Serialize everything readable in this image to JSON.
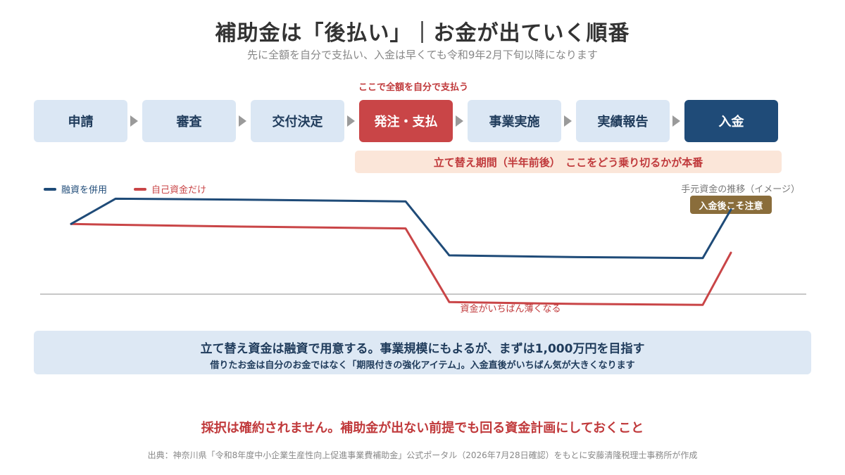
{
  "title": "補助金は「後払い」｜お金が出ていく順番",
  "subtitle": "先に全額を自分で支払い、入金は早くても令和9年2月下旬以降になります",
  "callout": "ここで全額を自分で支払う",
  "steps": [
    "申請",
    "審査",
    "交付決定",
    "発注・支払",
    "事業実施",
    "実績報告",
    "入金"
  ],
  "period_note": "立て替え期間（半年前後）　ここをどう乗り切るかが本番",
  "legend": [
    {
      "label": "融資を併用",
      "color": "#1f4b78"
    },
    {
      "label": "自己資金だけ",
      "color": "#c94547"
    }
  ],
  "chart_caption": "手元資金の推移（イメージ）",
  "badge": "入金後こそ注意",
  "low_note": "資金がいちばん薄くなる",
  "chart_data": {
    "type": "line",
    "series": [
      {
        "name": "融資を併用",
        "values": [
          71,
          99,
          98,
          96,
          36,
          34,
          33,
          87
        ]
      },
      {
        "name": "自己資金だけ",
        "values": [
          71,
          70,
          68,
          66,
          -16,
          -18,
          -19,
          39
        ]
      }
    ],
    "ylim": [
      -40,
      140
    ],
    "grid": false
  },
  "info": {
    "main": "立て替え資金は融資で用意する。事業規模にもよるが、まずは1,000万円を目指す",
    "sub": "借りたお金は自分のお金ではなく「期限付きの強化アイテム」。入金直後がいちばん気が大きくなります"
  },
  "warning": "採択は確約されません。補助金が出ない前提でも回る資金計画にしておくこと",
  "source": "出典：神奈川県「令和8年度中小企業生産性向上促進事業費補助金」公式ポータル（2026年7月28日確認）をもとに安藤清隆税理士事務所が作成",
  "colors": {
    "navy": "#1f4b78",
    "red": "#c94547",
    "light_blue": "#dbe7f4",
    "peach": "#fbe6d9",
    "gold": "#8a6d3b"
  }
}
